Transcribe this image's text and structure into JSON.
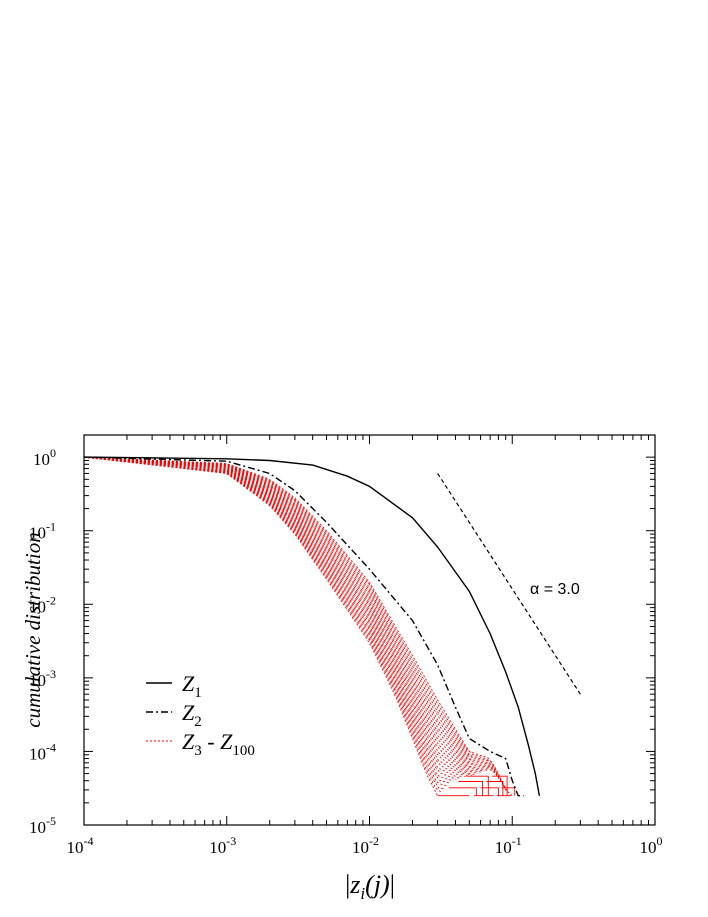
{
  "chart_data": {
    "type": "line",
    "x_scale": "log",
    "y_scale": "log",
    "xlim": [
      0.0001,
      1
    ],
    "ylim": [
      1e-05,
      2
    ],
    "xlabel_parts": {
      "bar_left": "|",
      "base": "z",
      "sub": "i",
      "args": "(j)",
      "bar_right": "|"
    },
    "ylabel": "cumulative distribution",
    "x_ticks": [
      {
        "base": "10",
        "exp": "-4",
        "value": 0.0001
      },
      {
        "base": "10",
        "exp": "-3",
        "value": 0.001
      },
      {
        "base": "10",
        "exp": "-2",
        "value": 0.01
      },
      {
        "base": "10",
        "exp": "-1",
        "value": 0.1
      },
      {
        "base": "10",
        "exp": "0",
        "value": 1
      }
    ],
    "y_ticks": [
      {
        "base": "10",
        "exp": "0",
        "value": 1
      },
      {
        "base": "10",
        "exp": "-1",
        "value": 0.1
      },
      {
        "base": "10",
        "exp": "-2",
        "value": 0.01
      },
      {
        "base": "10",
        "exp": "-3",
        "value": 0.001
      },
      {
        "base": "10",
        "exp": "-4",
        "value": 0.0001
      },
      {
        "base": "10",
        "exp": "-5",
        "value": 1e-05
      }
    ],
    "legend_position": "lower-left",
    "legend": [
      {
        "label_base": "Z",
        "label_sub": "1",
        "style": "solid",
        "color": "#000000"
      },
      {
        "label_base": "Z",
        "label_sub": "2",
        "style": "dash-dot",
        "color": "#000000"
      },
      {
        "label_base": "Z",
        "label_sub": "3",
        "label_sep": " - ",
        "label_base2": "Z",
        "label_sub2": "100",
        "style": "dotted",
        "color": "#ff0000"
      }
    ],
    "series": [
      {
        "name": "Z1",
        "style": "solid",
        "color": "#000000",
        "x": [
          0.0001,
          0.001,
          0.002,
          0.004,
          0.007,
          0.01,
          0.02,
          0.03,
          0.05,
          0.07,
          0.09,
          0.11,
          0.13,
          0.145,
          0.155
        ],
        "y": [
          1.0,
          0.95,
          0.9,
          0.78,
          0.55,
          0.4,
          0.15,
          0.06,
          0.015,
          0.004,
          0.0012,
          0.0004,
          0.00012,
          5e-05,
          2.5e-05
        ]
      },
      {
        "name": "Z2",
        "style": "dash-dot",
        "color": "#000000",
        "x": [
          0.0001,
          0.001,
          0.002,
          0.003,
          0.005,
          0.01,
          0.02,
          0.03,
          0.04,
          0.05,
          0.07,
          0.09,
          0.1,
          0.11,
          0.12
        ],
        "y": [
          1.0,
          0.88,
          0.6,
          0.35,
          0.13,
          0.03,
          0.006,
          0.0015,
          0.0004,
          0.00015,
          0.0001,
          8e-05,
          4e-05,
          2.5e-05,
          2.5e-05
        ]
      },
      {
        "name": "Z3 - Z100 (upper envelope)",
        "style": "dotted",
        "color": "#ff0000",
        "x": [
          0.0001,
          0.001,
          0.002,
          0.003,
          0.005,
          0.01,
          0.02,
          0.03,
          0.04,
          0.05,
          0.07,
          0.08,
          0.09,
          0.1
        ],
        "y": [
          1.0,
          0.82,
          0.5,
          0.28,
          0.1,
          0.02,
          0.002,
          0.0005,
          0.0002,
          0.0001,
          8e-05,
          5e-05,
          3e-05,
          2.5e-05
        ]
      },
      {
        "name": "Z3 - Z100 (lower envelope)",
        "style": "dotted",
        "color": "#ff0000",
        "x": [
          0.0001,
          0.001,
          0.002,
          0.003,
          0.005,
          0.01,
          0.015,
          0.02,
          0.025,
          0.03
        ],
        "y": [
          1.0,
          0.6,
          0.22,
          0.09,
          0.022,
          0.003,
          0.0006,
          0.00015,
          5e-05,
          2.5e-05
        ]
      }
    ],
    "reference_line": {
      "style": "dashed",
      "color": "#000000",
      "x": [
        0.03,
        0.3
      ],
      "y": [
        0.6,
        0.0006
      ],
      "label": "α = 3.0"
    }
  }
}
